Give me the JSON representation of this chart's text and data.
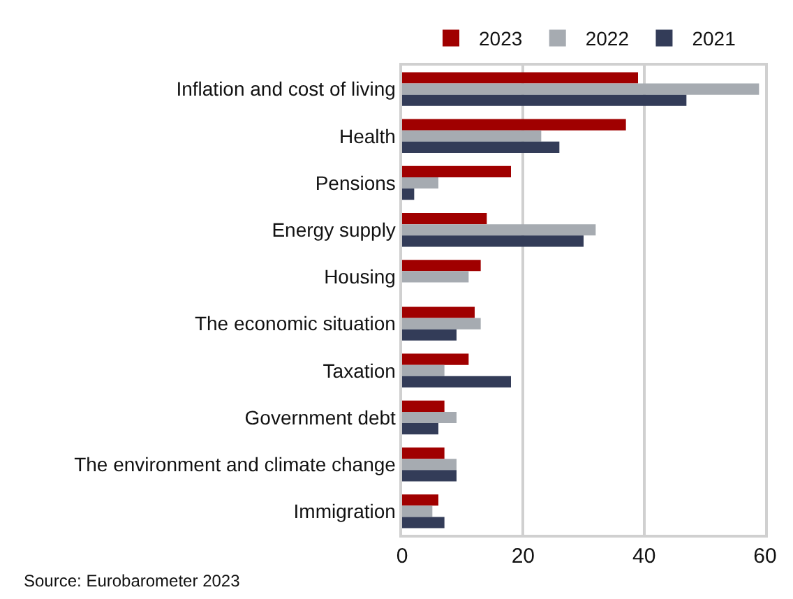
{
  "chart_data": {
    "type": "bar",
    "orientation": "horizontal",
    "categories": [
      "Inflation and cost of living",
      "Health",
      "Pensions",
      "Energy supply",
      "Housing",
      "The economic situation",
      "Taxation",
      "Government debt",
      "The environment and climate change",
      "Immigration"
    ],
    "series": [
      {
        "name": "2023",
        "color": "#a00000",
        "values": [
          39,
          37,
          18,
          14,
          13,
          12,
          11,
          7,
          7,
          6
        ]
      },
      {
        "name": "2022",
        "color": "#a6abb1",
        "values": [
          59,
          23,
          6,
          32,
          11,
          13,
          7,
          9,
          9,
          5
        ]
      },
      {
        "name": "2021",
        "color": "#333c58",
        "values": [
          47,
          26,
          2,
          30,
          null,
          9,
          18,
          6,
          9,
          7
        ]
      }
    ],
    "xlim": [
      0,
      60
    ],
    "xticks": [
      0,
      20,
      40,
      60
    ],
    "grid": "x",
    "legend": "top",
    "annotations": [
      "Source: Eurobarometer 2023"
    ]
  }
}
